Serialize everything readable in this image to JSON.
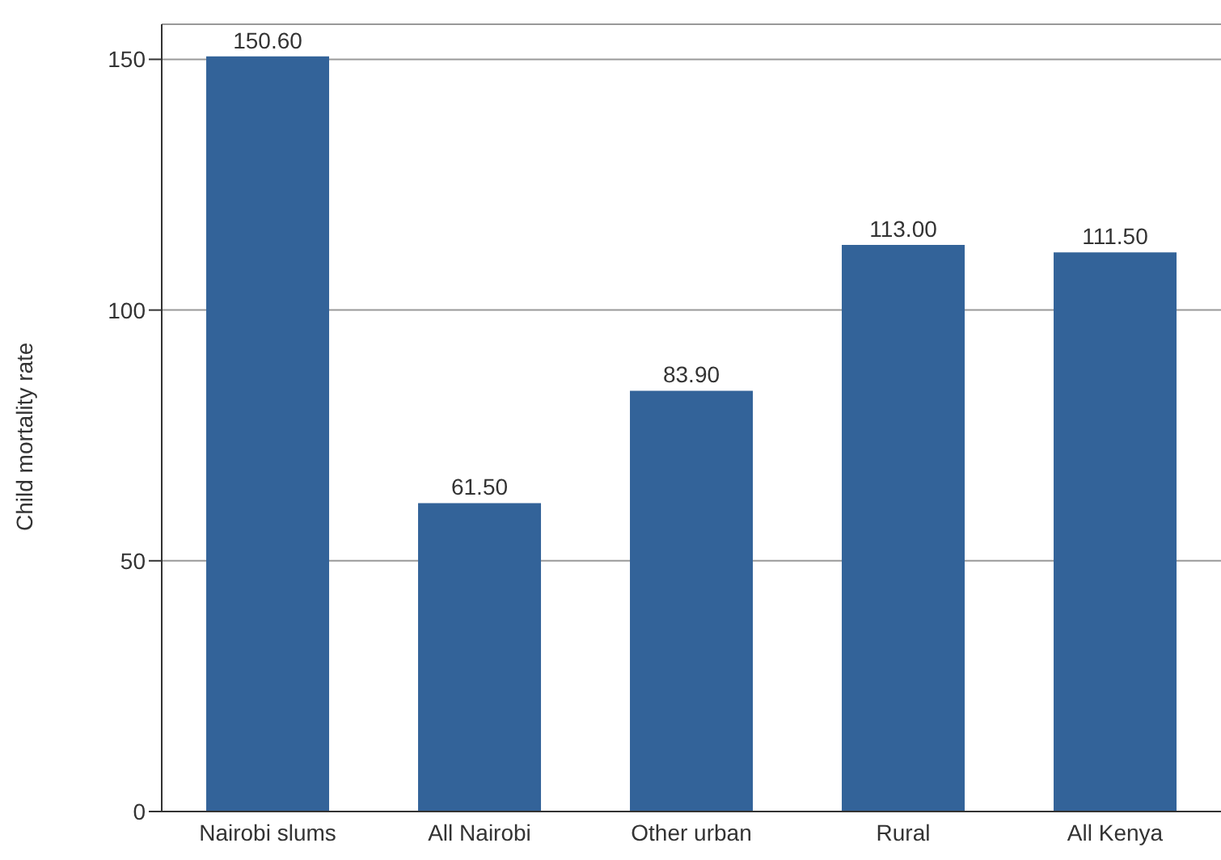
{
  "chart_data": {
    "type": "bar",
    "ylabel": "Child mortality rate",
    "categories": [
      "Nairobi slums",
      "All Nairobi",
      "Other urban",
      "Rural",
      "All Kenya"
    ],
    "values": [
      150.6,
      61.5,
      83.9,
      113.0,
      111.5
    ],
    "value_labels": [
      "150.60",
      "61.50",
      "83.90",
      "113.00",
      "111.50"
    ],
    "color": "#336399",
    "ylim": [
      0,
      157
    ],
    "yticks": [
      0,
      50,
      100,
      150
    ],
    "grid": "y"
  }
}
